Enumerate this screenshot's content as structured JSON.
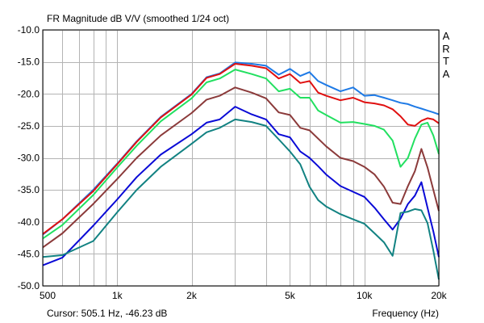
{
  "window": {
    "title": "FR Magnitude dB V/V (smoothed 1/24 oct)",
    "watermark": [
      "A",
      "R",
      "T",
      "A"
    ],
    "status": "Cursor: 505.1 Hz, -46.23 dB"
  },
  "chart_data": {
    "type": "line",
    "title": "FR Magnitude dB V/V (smoothed 1/24 oct)",
    "xlabel": "Frequency (Hz)",
    "ylabel": "",
    "xscale": "log",
    "xlim": [
      500,
      20000
    ],
    "ylim": [
      -50,
      -10
    ],
    "grid": true,
    "x_tick_labels": [
      "500",
      "1k",
      "2k",
      "5k",
      "10k",
      "20k"
    ],
    "x_tick_values": [
      500,
      1000,
      2000,
      5000,
      10000,
      20000
    ],
    "y_tick_labels": [
      "-10.0",
      "-15.0",
      "-20.0",
      "-25.0",
      "-30.0",
      "-35.0",
      "-40.0",
      "-45.0",
      "-50.0"
    ],
    "y_tick_values": [
      -10,
      -15,
      -20,
      -25,
      -30,
      -35,
      -40,
      -45,
      -50
    ],
    "x": [
      500,
      600,
      800,
      1000,
      1200,
      1500,
      2000,
      2300,
      2600,
      3000,
      3500,
      4000,
      4500,
      5000,
      5500,
      6000,
      6500,
      7000,
      8000,
      9000,
      10000,
      11000,
      12000,
      13000,
      14000,
      15000,
      16000,
      17000,
      18000,
      19000,
      20000
    ],
    "series": [
      {
        "color": "#1e7ae6",
        "values": [
          -42.0,
          -39.6,
          -35.0,
          -30.9,
          -27.4,
          -23.6,
          -20.0,
          -17.4,
          -16.8,
          -15.1,
          -15.3,
          -15.6,
          -17.0,
          -16.1,
          -17.2,
          -16.6,
          -18.0,
          -18.6,
          -19.6,
          -19.0,
          -20.3,
          -20.2,
          -20.6,
          -21.0,
          -21.4,
          -21.6,
          -22.0,
          -22.3,
          -22.6,
          -22.9,
          -23.2
        ]
      },
      {
        "color": "#e01010",
        "values": [
          -41.9,
          -39.6,
          -35.2,
          -31.0,
          -27.5,
          -23.7,
          -20.1,
          -17.5,
          -16.9,
          -15.3,
          -15.6,
          -16.0,
          -17.6,
          -16.9,
          -18.3,
          -18.0,
          -19.8,
          -20.3,
          -21.0,
          -20.6,
          -21.3,
          -21.5,
          -21.8,
          -22.4,
          -23.5,
          -24.8,
          -25.0,
          -24.2,
          -23.8,
          -24.0,
          -24.6
        ]
      },
      {
        "color": "#22e060",
        "values": [
          -42.6,
          -40.5,
          -35.8,
          -31.5,
          -28.1,
          -24.3,
          -20.7,
          -18.2,
          -17.6,
          -16.2,
          -16.9,
          -17.6,
          -19.6,
          -19.2,
          -20.6,
          -20.6,
          -22.6,
          -23.3,
          -24.5,
          -24.4,
          -24.7,
          -25.0,
          -25.6,
          -27.3,
          -31.4,
          -30.0,
          -27.0,
          -24.8,
          -24.5,
          -26.5,
          -29.4
        ]
      },
      {
        "color": "#8b3a3a",
        "values": [
          -44.0,
          -41.8,
          -37.2,
          -33.3,
          -30.0,
          -26.5,
          -23.0,
          -20.9,
          -20.3,
          -19.0,
          -19.8,
          -20.7,
          -22.9,
          -23.3,
          -25.3,
          -25.7,
          -27.0,
          -28.2,
          -30.0,
          -30.5,
          -31.4,
          -32.6,
          -34.5,
          -37.0,
          -37.2,
          -34.4,
          -32.1,
          -28.6,
          -31.5,
          -35.0,
          -38.3
        ]
      },
      {
        "color": "#0a0ad6",
        "values": [
          -46.8,
          -45.6,
          -40.6,
          -36.5,
          -33.0,
          -29.5,
          -26.3,
          -24.5,
          -24.0,
          -22.0,
          -23.2,
          -24.0,
          -26.3,
          -26.8,
          -29.0,
          -30.0,
          -31.3,
          -32.6,
          -34.4,
          -35.3,
          -36.1,
          -37.8,
          -39.6,
          -41.2,
          -39.5,
          -37.2,
          -35.9,
          -33.8,
          -37.8,
          -41.5,
          -45.5
        ]
      },
      {
        "color": "#128282",
        "values": [
          -45.5,
          -45.2,
          -43.0,
          -38.5,
          -35.0,
          -31.4,
          -27.8,
          -26.0,
          -25.3,
          -24.0,
          -24.4,
          -25.0,
          -27.1,
          -29.0,
          -31.0,
          -34.5,
          -36.6,
          -37.6,
          -38.8,
          -39.6,
          -40.3,
          -41.8,
          -43.2,
          -45.3,
          -38.6,
          -38.4,
          -38.0,
          -38.2,
          -40.2,
          -44.5,
          -49.0
        ]
      }
    ]
  }
}
